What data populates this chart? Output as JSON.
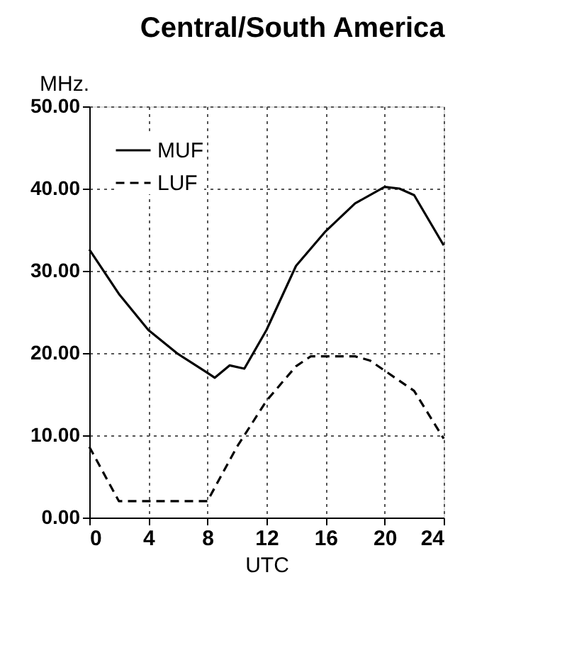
{
  "chart_data": {
    "type": "line",
    "title": "Central/South America",
    "xlabel": "UTC",
    "ylabel": "MHz.",
    "xlim": [
      0,
      24
    ],
    "xticks": [
      0,
      4,
      8,
      12,
      16,
      20,
      24
    ],
    "ylim": [
      0,
      50
    ],
    "yticks": [
      {
        "value": 0,
        "label": "0.00"
      },
      {
        "value": 10,
        "label": "10.00"
      },
      {
        "value": 20,
        "label": "20.00"
      },
      {
        "value": 30,
        "label": "30.00"
      },
      {
        "value": 40,
        "label": "40.00"
      },
      {
        "value": 50,
        "label": "50.00"
      }
    ],
    "grid": true,
    "legend": "top left",
    "marker": "none",
    "series": [
      {
        "name": "MUF",
        "color": "#000000",
        "line_style": "solid",
        "x": [
          0,
          2,
          4,
          6,
          8,
          8.5,
          9.5,
          10.5,
          12,
          14,
          16,
          18,
          20,
          21,
          22,
          24
        ],
        "values": [
          32.6,
          27.2,
          22.8,
          19.9,
          17.6,
          17.0,
          18.5,
          18.1,
          22.8,
          30.6,
          34.8,
          38.2,
          40.2,
          40.0,
          39.2,
          33.1
        ]
      },
      {
        "name": "LUF",
        "color": "#000000",
        "line_style": "dashed",
        "x": [
          0,
          2,
          8,
          10,
          12,
          14,
          15,
          18,
          19,
          22,
          24
        ],
        "values": [
          8.6,
          2.0,
          2.0,
          8.6,
          14.2,
          18.4,
          19.6,
          19.6,
          19.1,
          15.4,
          9.6
        ]
      }
    ]
  }
}
